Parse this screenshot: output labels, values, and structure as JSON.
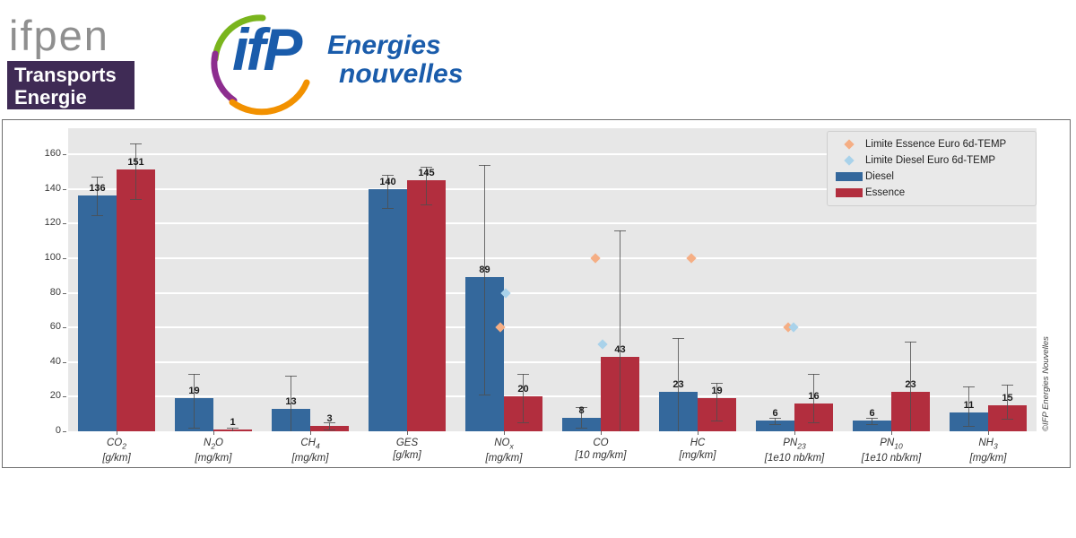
{
  "header": {
    "ifpen_wordmark": "ifpen",
    "banner_line1": "Transports",
    "banner_line2": "Energie",
    "ifp_monogram": "ifP",
    "ifp_line1": "Energies",
    "ifp_line2": "nouvelles"
  },
  "watermark": "©IFP Energies Nouvelles",
  "legend": [
    {
      "marker": "diamond",
      "color": "#f5ae84",
      "label": "Limite Essence Euro 6d-TEMP"
    },
    {
      "marker": "diamond",
      "color": "#a9d2ea",
      "label": "Limite Diesel Euro 6d-TEMP"
    },
    {
      "marker": "bar",
      "color": "#34689c",
      "label": "Diesel"
    },
    {
      "marker": "bar",
      "color": "#b22e3e",
      "label": "Essence"
    }
  ],
  "chart_data": {
    "type": "bar",
    "categories": [
      {
        "pre": "CO",
        "sub": "2",
        "post": "",
        "unit": "[g/km]"
      },
      {
        "pre": "N",
        "sub": "2",
        "post": "O",
        "unit": "[mg/km]"
      },
      {
        "pre": "CH",
        "sub": "4",
        "post": "",
        "unit": "[mg/km]"
      },
      {
        "pre": "GES",
        "sub": "",
        "post": "",
        "unit": "[g/km]"
      },
      {
        "pre": "NO",
        "sub": "x",
        "post": "",
        "unit": "[mg/km]"
      },
      {
        "pre": "CO",
        "sub": "",
        "post": "",
        "unit": "[10 mg/km]"
      },
      {
        "pre": "HC",
        "sub": "",
        "post": "",
        "unit": "[mg/km]"
      },
      {
        "pre": "PN",
        "sub": "23",
        "post": "",
        "unit": "[1e10 nb/km]"
      },
      {
        "pre": "PN",
        "sub": "10",
        "post": "",
        "unit": "[1e10 nb/km]"
      },
      {
        "pre": "NH",
        "sub": "3",
        "post": "",
        "unit": "[mg/km]"
      }
    ],
    "series": [
      {
        "name": "Diesel",
        "color": "#34689c",
        "values": [
          136,
          19,
          13,
          140,
          89,
          8,
          23,
          6,
          6,
          11
        ],
        "errors": [
          [
            125,
            147
          ],
          [
            2,
            33
          ],
          [
            0,
            32
          ],
          [
            129,
            148
          ],
          [
            21,
            154
          ],
          [
            2,
            14
          ],
          [
            0,
            54
          ],
          [
            4,
            8
          ],
          [
            4,
            8
          ],
          [
            3,
            26
          ]
        ]
      },
      {
        "name": "Essence",
        "color": "#b22e3e",
        "values": [
          151,
          1,
          3,
          145,
          20,
          43,
          19,
          16,
          23,
          15
        ],
        "errors": [
          [
            134,
            166
          ],
          [
            0,
            2
          ],
          [
            1,
            5
          ],
          [
            131,
            153
          ],
          [
            5,
            33
          ],
          [
            0,
            116
          ],
          [
            6,
            28
          ],
          [
            5,
            33
          ],
          [
            0,
            52
          ],
          [
            7,
            27
          ]
        ]
      }
    ],
    "limits": [
      {
        "group": 4,
        "type": "essence",
        "value": 60,
        "dx": -4
      },
      {
        "group": 4,
        "type": "diesel",
        "value": 80,
        "dx": 2
      },
      {
        "group": 5,
        "type": "essence",
        "value": 100,
        "dx": -6
      },
      {
        "group": 5,
        "type": "diesel",
        "value": 50,
        "dx": 2
      },
      {
        "group": 6,
        "type": "essence",
        "value": 100,
        "dx": -7
      },
      {
        "group": 7,
        "type": "essence",
        "value": 60,
        "dx": -7
      },
      {
        "group": 7,
        "type": "diesel",
        "value": 60,
        "dx": -1
      }
    ],
    "limit_colors": {
      "essence": "#f5ae84",
      "diesel": "#a9d2ea"
    },
    "yticks": [
      0,
      20,
      40,
      60,
      80,
      100,
      120,
      140,
      160
    ],
    "ylim": [
      0,
      175
    ],
    "grid": true,
    "legend_position": "upper right",
    "plot_bg": "#e7e7e7",
    "error_color": "#4d4d4d"
  }
}
